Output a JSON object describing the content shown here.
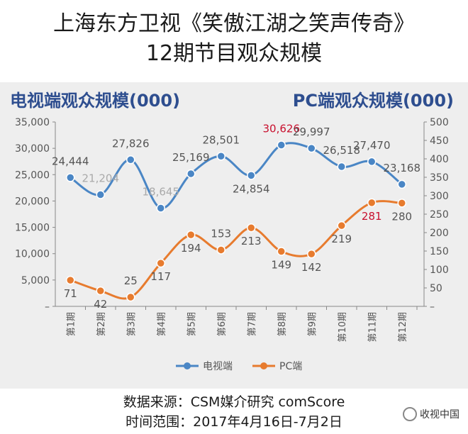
{
  "title_line1": "上海东方卫视《笑傲江湖之笑声传奇》",
  "title_line2": "12期节目观众规模",
  "source_line1": "数据来源：CSM媒介研究 comScore",
  "source_line2": "时间范围：2017年4月16日-7月2日",
  "watermark": "收视中国",
  "colors": {
    "tv": "#4a86c5",
    "pc": "#e77b2e",
    "highlight": "#c8102e",
    "axis_title": "#2e4e8f"
  },
  "chart_data": {
    "type": "line",
    "categories": [
      "第1期",
      "第2期",
      "第3期",
      "第4期",
      "第5期",
      "第6期",
      "第7期",
      "第8期",
      "第9期",
      "第10期",
      "第11期",
      "第12期"
    ],
    "left_axis": {
      "title": "电视端观众规模(000)",
      "range": [
        0,
        35000
      ],
      "ticks": [
        "35,000",
        "30,000",
        "25,000",
        "20,000",
        "15,000",
        "10,000",
        "5,000",
        "–"
      ]
    },
    "right_axis": {
      "title": "PC端观众规模(000)",
      "range": [
        0,
        500
      ],
      "ticks": [
        "500",
        "450",
        "400",
        "350",
        "300",
        "250",
        "200",
        "150",
        "100",
        "50",
        "–"
      ]
    },
    "series": [
      {
        "name": "电视端",
        "axis": "left",
        "values": [
          24444,
          21204,
          27826,
          18645,
          25169,
          28501,
          24854,
          30626,
          29997,
          26518,
          27470,
          23168
        ],
        "labels": [
          "24,444",
          "21,204",
          "27,826",
          "18,645",
          "25,169",
          "28,501",
          "24,854",
          "30,626",
          "29,997",
          "26,518",
          "27,470",
          "23,168"
        ]
      },
      {
        "name": "PC端",
        "axis": "right",
        "values": [
          71,
          42,
          25,
          117,
          194,
          153,
          213,
          149,
          142,
          219,
          281,
          280
        ],
        "labels": [
          "71",
          "42",
          "25",
          "117",
          "194",
          "153",
          "213",
          "149",
          "142",
          "219",
          "281",
          "280"
        ]
      }
    ],
    "highlighted_labels": {
      "电视端": [
        7
      ],
      "PC端": [
        10
      ]
    },
    "legend_position": "bottom",
    "grid": false
  }
}
